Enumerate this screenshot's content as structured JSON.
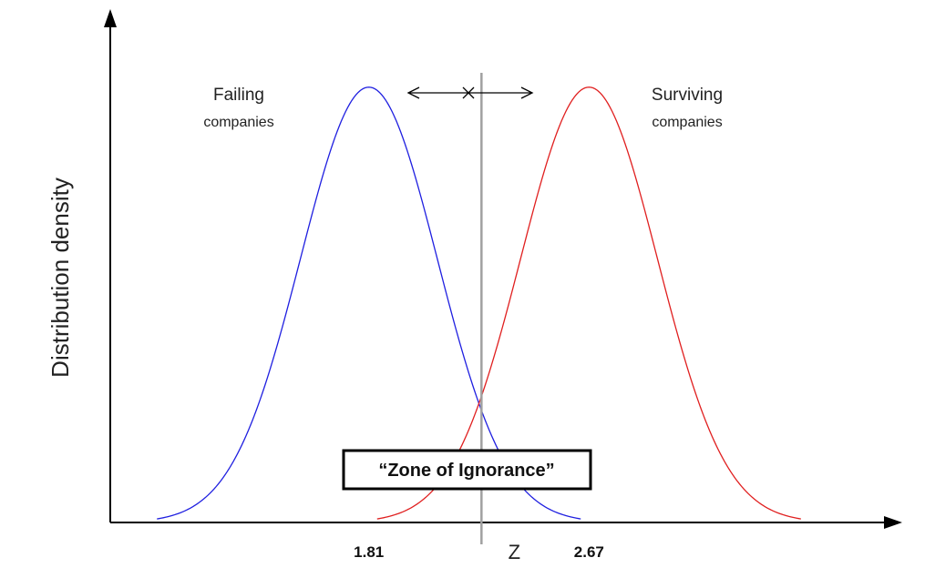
{
  "chart_data": {
    "type": "line",
    "title": "",
    "xlabel": "Z",
    "ylabel": "Distribution density",
    "series": [
      {
        "name": "Failing companies",
        "label_line1": "Failing",
        "label_line2": "companies",
        "mean": 1.81,
        "sd": 0.267,
        "color": "#1f1fe0"
      },
      {
        "name": "Surviving companies",
        "label_line1": "Surviving",
        "label_line2": "companies",
        "mean": 2.67,
        "sd": 0.267,
        "color": "#e01f1f"
      }
    ],
    "ticks": [
      {
        "value": 1.81,
        "label": "1.81"
      },
      {
        "value": 2.67,
        "label": "2.67"
      }
    ],
    "divider": 2.25,
    "divider_color": "#a0a0a0",
    "annotation": "“Zone of Ignorance”",
    "xlim": [
      0.8,
      3.84
    ],
    "ylim": [
      0,
      1.15
    ]
  }
}
